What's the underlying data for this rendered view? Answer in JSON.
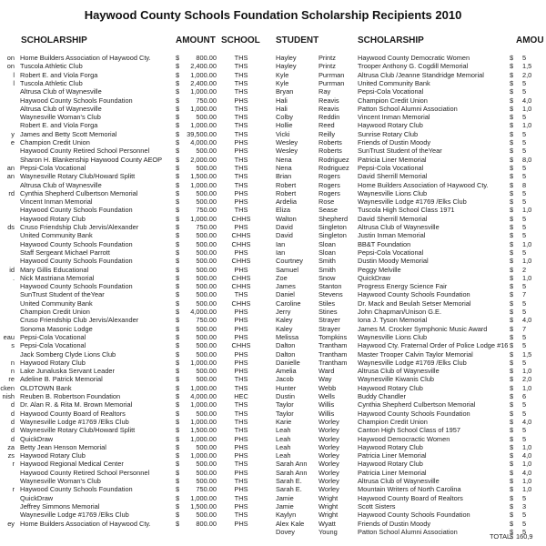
{
  "title": "Haywood County Schools Foundation Scholarship Recipients 2010",
  "headers": {
    "scholarship_left": "SCHOLARSHIP",
    "amount_left": "AMOUNT",
    "school": "SCHOOL",
    "student": "STUDENT",
    "scholarship_right": "SCHOLARSHIP",
    "amount_right": "AMOU"
  },
  "left_rows": [
    [
      "on",
      "Home Builders Association of Haywood Cty.",
      "$",
      "800.00",
      "THS"
    ],
    [
      "on",
      "Tuscola Athletic Club",
      "$",
      "2,400.00",
      "THS"
    ],
    [
      "l",
      "Robert E. and Viola Forga",
      "$",
      "1,000.00",
      "THS"
    ],
    [
      "l",
      "Tuscola Athletic Club",
      "$",
      "2,400.00",
      "THS"
    ],
    [
      "",
      "Altrusa Club of Waynesville",
      "$",
      "1,000.00",
      "THS"
    ],
    [
      "",
      "Haywood County Schools Foundation",
      "$",
      "750.00",
      "PHS"
    ],
    [
      "",
      "Altrusa Club of Waynesville",
      "$",
      "1,000.00",
      "THS"
    ],
    [
      "",
      "Waynesville Woman's Club",
      "$",
      "500.00",
      "THS"
    ],
    [
      "",
      "Robert E. and Viola Forga",
      "$",
      "1,000.00",
      "THS"
    ],
    [
      "y",
      "James and Betty Scott Memorial",
      "$",
      "39,500.00",
      "THS"
    ],
    [
      "e",
      "Champion Credit Union",
      "$",
      "4,000.00",
      "PHS"
    ],
    [
      "",
      "Haywood County Retired School Personnel",
      "$",
      "500.00",
      "PHS"
    ],
    [
      "",
      "Sharon H. Blankenship Haywood County AEOP",
      "$",
      "2,000.00",
      "THS"
    ],
    [
      "an",
      "Pepsi-Cola Vocational",
      "$",
      "500.00",
      "THS"
    ],
    [
      "an",
      "Waynesville Rotary Club/Howard Splitt",
      "$",
      "1,500.00",
      "THS"
    ],
    [
      "",
      "Altrusa Club of Waynesville",
      "$",
      "1,000.00",
      "THS"
    ],
    [
      "rd",
      "Cynthia Shepherd Culbertson Memorial",
      "$",
      "500.00",
      "PHS"
    ],
    [
      "",
      "Vincent Inman Memorial",
      "$",
      "500.00",
      "PHS"
    ],
    [
      "",
      "Haywood County Schools Foundation",
      "$",
      "750.00",
      "THS"
    ],
    [
      "",
      "Haywood Rotary Club",
      "$",
      "1,000.00",
      "CHHS"
    ],
    [
      "ds",
      "Cruso Friendship Club Jervis/Alexander",
      "$",
      "750.00",
      "PHS"
    ],
    [
      "",
      "United Community Bank",
      "$",
      "500.00",
      "CHHS"
    ],
    [
      "",
      "Haywood County Schools Foundation",
      "$",
      "500.00",
      "CHHS"
    ],
    [
      "",
      "Staff Sergeant Michael Parrott",
      "$",
      "500.00",
      "PHS"
    ],
    [
      "",
      "Haywood County Schools Foundation",
      "$",
      "500.00",
      "CHHS"
    ],
    [
      "id",
      "Mary Gillis Educational",
      "$",
      "500.00",
      "PHS"
    ],
    [
      ".",
      "Nick Mastriana Memorial",
      "$",
      "500.00",
      "CHHS"
    ],
    [
      "",
      "Haywood County Schools Foundation",
      "$",
      "500.00",
      "CHHS"
    ],
    [
      "",
      "SunTrust Student of theYear",
      "$",
      "500.00",
      "THS"
    ],
    [
      "",
      "United Community Bank",
      "$",
      "500.00",
      "CHHS"
    ],
    [
      "",
      "Champion Credit Union",
      "$",
      "4,000.00",
      "PHS"
    ],
    [
      "",
      "Cruso Friendship Club Jervis/Alexander",
      "$",
      "750.00",
      "PHS"
    ],
    [
      "",
      "Sonoma Masonic Lodge",
      "$",
      "500.00",
      "PHS"
    ],
    [
      "eau",
      "Pepsi-Cola Vocational",
      "$",
      "500.00",
      "PHS"
    ],
    [
      "s",
      "Pepsi-Cola Vocational",
      "$",
      "500.00",
      "CHHS"
    ],
    [
      "",
      "Jack Somberg Clyde Lions Club",
      "$",
      "500.00",
      "PHS"
    ],
    [
      "n",
      "Haywood Rotary Club",
      "$",
      "1,000.00",
      "PHS"
    ],
    [
      "n",
      "Lake Junaluska Servant Leader",
      "$",
      "500.00",
      "PHS"
    ],
    [
      "re",
      "Adeline B. Patrick Memorial",
      "$",
      "500.00",
      "THS"
    ],
    [
      "cken",
      "OLDTOWN Bank",
      "$",
      "1,000.00",
      "THS"
    ],
    [
      "nish",
      "Reuben B. Robertson Foundation",
      "$",
      "4,000.00",
      "HEC"
    ],
    [
      "d",
      "Dr. Alan R. & Rita M. Brown Memorial",
      "$",
      "1,000.00",
      "THS"
    ],
    [
      "d",
      "Haywood County Board of Realtors",
      "$",
      "500.00",
      "THS"
    ],
    [
      "d",
      "Waynesville Lodge #1769 /Elks Club",
      "$",
      "1,000.00",
      "THS"
    ],
    [
      "d",
      "Waynesville Rotary Club/Howard Splitt",
      "$",
      "1,500.00",
      "THS"
    ],
    [
      "d",
      "QuickDraw",
      "$",
      "1,000.00",
      "PHS"
    ],
    [
      "za",
      "Betty Jean Henson Memorial",
      "$",
      "500.00",
      "PHS"
    ],
    [
      "zs",
      "Haywood Rotary Club",
      "$",
      "1,000.00",
      "PHS"
    ],
    [
      "r",
      "Haywood Regional Medical Center",
      "$",
      "500.00",
      "THS"
    ],
    [
      "",
      "Haywood County Retired School Personnel",
      "$",
      "500.00",
      "PHS"
    ],
    [
      "",
      "Waynesville Woman's Club",
      "$",
      "500.00",
      "THS"
    ],
    [
      "r",
      "Haywood County Schools Foundation",
      "$",
      "750.00",
      "PHS"
    ],
    [
      "",
      "QuickDraw",
      "$",
      "1,000.00",
      "THS"
    ],
    [
      "",
      "Jeffrey Simmons Memorial",
      "$",
      "1,500.00",
      "PHS"
    ],
    [
      "",
      "Waynesville Lodge #1769 /Elks Club",
      "$",
      "500.00",
      "THS"
    ],
    [
      "ey",
      "Home Builders Association of Haywood Cty.",
      "$",
      "800.00",
      "PHS"
    ]
  ],
  "right_rows": [
    [
      "Hayley",
      "Printz",
      "Haywood County Democratic Women",
      "$",
      "5"
    ],
    [
      "Hayley",
      "Printz",
      "Trooper Anthony G. Cogdill Memorial",
      "$",
      "1,5"
    ],
    [
      "Kyle",
      "Purrman",
      "Altrusa Club /Jeanne Standridge Memorial",
      "$",
      "2,0"
    ],
    [
      "Kyle",
      "Purrman",
      "United Community Bank",
      "$",
      "5"
    ],
    [
      "Bryan",
      "Ray",
      "Pepsi-Cola Vocational",
      "$",
      "5"
    ],
    [
      "Hali",
      "Reavis",
      "Champion Credit Union",
      "$",
      "4,0"
    ],
    [
      "Hali",
      "Reavis",
      "Patton School Alumni Association",
      "$",
      "1,0"
    ],
    [
      "Colby",
      "Reddin",
      "Vincent Inman Memorial",
      "$",
      "5"
    ],
    [
      "Hollie",
      "Reed",
      "Haywood Rotary Club",
      "$",
      "1,0"
    ],
    [
      "Vicki",
      "Reilly",
      "Sunrise Rotary Club",
      "$",
      "5"
    ],
    [
      "Wesley",
      "Roberts",
      "Friends of Dustin Moody",
      "$",
      "5"
    ],
    [
      "Wesley",
      "Roberts",
      "SunTrust Student of theYear",
      "$",
      "5"
    ],
    [
      "Nena",
      "Rodriguez",
      "Patricia Liner Memorial",
      "$",
      "8,0"
    ],
    [
      "Nena",
      "Rodriguez",
      "Pepsi-Cola Vocational",
      "$",
      "5"
    ],
    [
      "Brian",
      "Rogers",
      "David Sherrill Memorial",
      "$",
      "5"
    ],
    [
      "Robert",
      "Rogers",
      "Home Builders Association of Haywood Cty.",
      "$",
      "8"
    ],
    [
      "Robert",
      "Rogers",
      "Waynesville Lions Club",
      "$",
      "5"
    ],
    [
      "Ardelia",
      "Rose",
      "Waynesville Lodge #1769 /Elks Club",
      "$",
      "5"
    ],
    [
      "Eliza",
      "Sease",
      "Tuscola High School Class 1971",
      "$",
      "1,0"
    ],
    [
      "Walton",
      "Shepherd",
      "David Sherrill Memorial",
      "$",
      "5"
    ],
    [
      "David",
      "Singleton",
      "Altrusa Club of Waynesville",
      "$",
      "5"
    ],
    [
      "David",
      "Singleton",
      "Justin Inman Memorial",
      "$",
      "5"
    ],
    [
      "Ian",
      "Sloan",
      "BB&T Foundation",
      "$",
      "1,0"
    ],
    [
      "Ian",
      "Sloan",
      "Pepsi-Cola Vocational",
      "$",
      "5"
    ],
    [
      "Courtney",
      "Smith",
      "Dustin Moody Memorial",
      "$",
      "1,0"
    ],
    [
      "Samuel",
      "Smith",
      "Peggy Melville",
      "$",
      "2"
    ],
    [
      "Zoe",
      "Snow",
      "QuickDraw",
      "$",
      "1,0"
    ],
    [
      "James",
      "Stanton",
      "Progress Energy Science Fair",
      "$",
      "5"
    ],
    [
      "Daniel",
      "Stevens",
      "Haywood County Schools Foundation",
      "$",
      "7"
    ],
    [
      "Caroline",
      "Stiles",
      "Dr. Mack and Beulah Setser Memorial",
      "$",
      "5"
    ],
    [
      "Jerry",
      "Stines",
      "John Chapman/Unison G.E.",
      "$",
      "5"
    ],
    [
      "Kaley",
      "Strayer",
      "Iona J. Tyson Memorial",
      "$",
      "4,0"
    ],
    [
      "Kaley",
      "Strayer",
      "James M. Crocker Symphonic Music Award",
      "$",
      "7"
    ],
    [
      "Melissa",
      "Tompkins",
      "Waynesville Lions Club",
      "$",
      "5"
    ],
    [
      "Dalton",
      "Trantham",
      "Haywood Cty. Fraternal Order of Police Lodge #16",
      "$",
      "5"
    ],
    [
      "Dalton",
      "Trantham",
      "Master Trooper Calvin Taylor Memorial",
      "$",
      "1,5"
    ],
    [
      "Danielle",
      "Trantham",
      "Waynesville Lodge #1769 /Elks Club",
      "$",
      "5"
    ],
    [
      "Amelia",
      "Ward",
      "Altrusa Club of Waynesville",
      "$",
      "1,0"
    ],
    [
      "Jacob",
      "Way",
      "Waynesville Kiwanis Club",
      "$",
      "2,0"
    ],
    [
      "Hunter",
      "Webb",
      "Haywood Rotary Club",
      "$",
      "1,0"
    ],
    [
      "Dustin",
      "Wells",
      "Buddy Chandler",
      "$",
      "6"
    ],
    [
      "Taylor",
      "Willis",
      "Cynthia Shepherd Culbertson Memorial",
      "$",
      "5"
    ],
    [
      "Taylor",
      "Willis",
      "Haywood County Schools Foundation",
      "$",
      "5"
    ],
    [
      "Karie",
      "Worley",
      "Champion Credit Union",
      "$",
      "4,0"
    ],
    [
      "Leah",
      "Worley",
      "Canton High School Class of 1957",
      "$",
      "5"
    ],
    [
      "Leah",
      "Worley",
      "Haywood Democractic Women",
      "$",
      "5"
    ],
    [
      "Leah",
      "Worley",
      "Haywood Rotary Club",
      "$",
      "1,0"
    ],
    [
      "Leah",
      "Worley",
      "Patricia Liner Memorial",
      "$",
      "4,0"
    ],
    [
      "Sarah Ann",
      "Worley",
      "Haywood Rotary Club",
      "$",
      "1,0"
    ],
    [
      "Sarah Ann",
      "Worley",
      "Patricia Liner Memorial",
      "$",
      "4,0"
    ],
    [
      "Sarah E.",
      "Worley",
      "Altrusa Club of Waynesville",
      "$",
      "1,0"
    ],
    [
      "Sarah E.",
      "Worley",
      "Mountain Writers of North Carolina",
      "$",
      "1,0"
    ],
    [
      "Jamie",
      "Wright",
      "Haywood County Board of Realtors",
      "$",
      "5"
    ],
    [
      "Jamie",
      "Wright",
      "Scott Sisters",
      "$",
      "3"
    ],
    [
      "Kaylyn",
      "Wright",
      "Haywood County Schools Foundation",
      "$",
      "5"
    ],
    [
      "Alex Kale",
      "Wyatt",
      "Friends of Dustin Moody",
      "$",
      "5"
    ],
    [
      "Dovey",
      "Young",
      "Patton School Alumni Association",
      "$",
      "5"
    ]
  ],
  "total": {
    "label": "TOTAL",
    "currency": "$",
    "value": "160,9"
  }
}
